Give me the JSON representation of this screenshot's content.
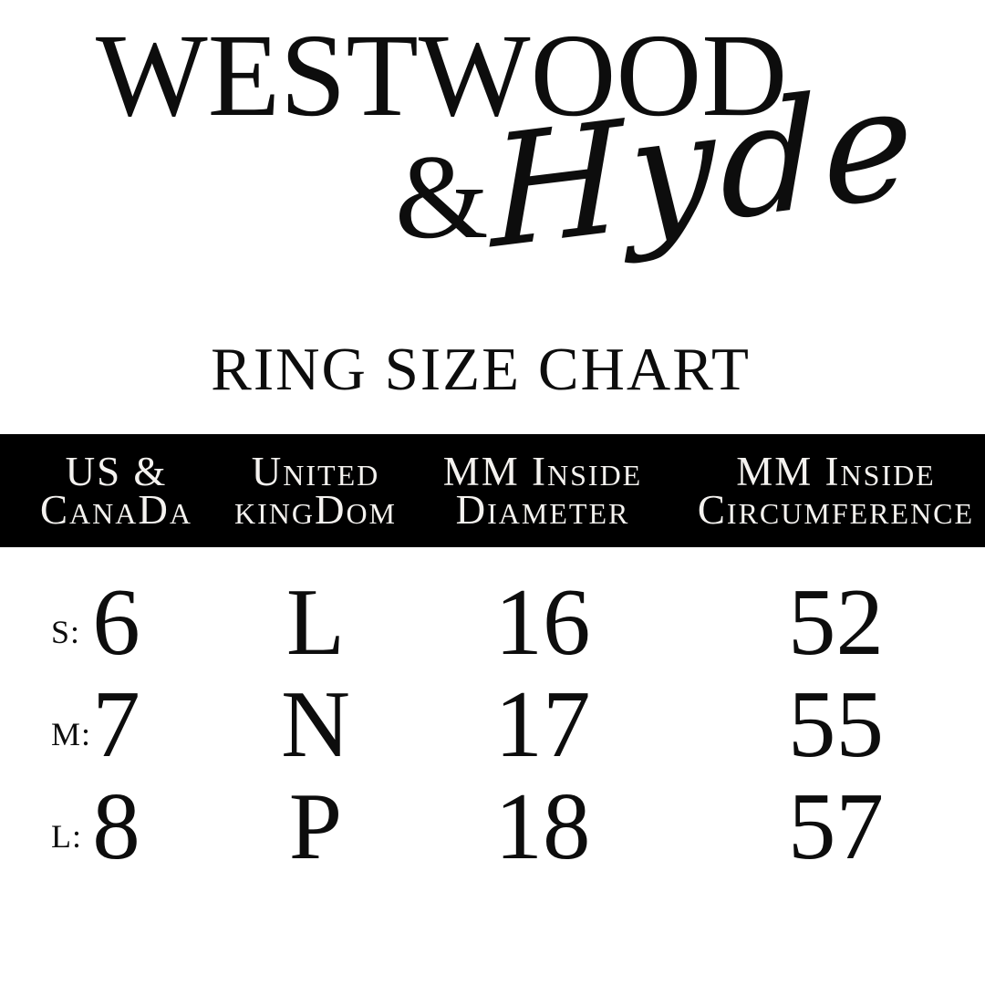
{
  "brand": {
    "wordmark": "WESTWOOD",
    "ampersand": "&",
    "script_name": "Hyde"
  },
  "title": "RING SIZE CHART",
  "colors": {
    "background": "#ffffff",
    "text": "#0d0d0d",
    "header_bg": "#000000",
    "header_text": "#f4f2ef"
  },
  "table": {
    "columns": [
      {
        "line1": "US &",
        "line2": "CanaDa"
      },
      {
        "line1": "United",
        "line2": "kingDom"
      },
      {
        "line1": "MM Inside",
        "line2": "Diameter"
      },
      {
        "line1": "MM Inside",
        "line2": "Circumference"
      }
    ],
    "rows": [
      {
        "label": "S:",
        "us_canada": "6",
        "united_kingdom": "L",
        "mm_inside_diameter": "16",
        "mm_inside_circumference": "52"
      },
      {
        "label": "M:",
        "us_canada": "7",
        "united_kingdom": "N",
        "mm_inside_diameter": "17",
        "mm_inside_circumference": "55"
      },
      {
        "label": "L:",
        "us_canada": "8",
        "united_kingdom": "P",
        "mm_inside_diameter": "18",
        "mm_inside_circumference": "57"
      }
    ]
  }
}
